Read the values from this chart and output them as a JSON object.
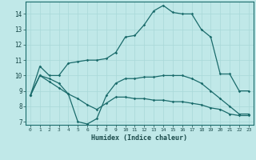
{
  "xlabel": "Humidex (Indice chaleur)",
  "bg_color": "#c0e8e8",
  "line_color": "#1a6b6b",
  "grid_color": "#a8d8d8",
  "xlim": [
    -0.5,
    23.5
  ],
  "ylim": [
    6.8,
    14.8
  ],
  "yticks": [
    7,
    8,
    9,
    10,
    11,
    12,
    13,
    14
  ],
  "xticks": [
    0,
    1,
    2,
    3,
    4,
    5,
    6,
    7,
    8,
    9,
    10,
    11,
    12,
    13,
    14,
    15,
    16,
    17,
    18,
    19,
    20,
    21,
    22,
    23
  ],
  "line1_x": [
    0,
    1,
    2,
    3,
    4,
    5,
    6,
    7,
    8,
    9,
    10,
    11,
    12,
    13,
    14,
    15,
    16,
    17,
    18,
    19,
    20,
    21,
    22,
    23
  ],
  "line1_y": [
    8.7,
    10.6,
    10.0,
    10.0,
    10.8,
    10.9,
    11.0,
    11.0,
    11.1,
    11.5,
    12.5,
    12.6,
    13.3,
    14.2,
    14.55,
    14.1,
    14.0,
    14.0,
    13.0,
    12.5,
    10.1,
    10.1,
    9.0,
    9.0
  ],
  "line2_x": [
    0,
    1,
    2,
    3,
    4,
    5,
    6,
    7,
    8,
    9,
    10,
    11,
    12,
    13,
    14,
    15,
    16,
    17,
    18,
    19,
    20,
    21,
    22,
    23
  ],
  "line2_y": [
    8.7,
    10.0,
    9.8,
    9.5,
    8.8,
    7.0,
    6.85,
    7.2,
    8.7,
    9.5,
    9.8,
    9.8,
    9.9,
    9.9,
    10.0,
    10.0,
    10.0,
    9.8,
    9.5,
    9.0,
    8.5,
    8.0,
    7.5,
    7.5
  ],
  "line3_x": [
    0,
    1,
    2,
    3,
    4,
    5,
    6,
    7,
    8,
    9,
    10,
    11,
    12,
    13,
    14,
    15,
    16,
    17,
    18,
    19,
    20,
    21,
    22,
    23
  ],
  "line3_y": [
    8.7,
    10.0,
    9.6,
    9.2,
    8.8,
    8.5,
    8.1,
    7.8,
    8.2,
    8.6,
    8.6,
    8.5,
    8.5,
    8.4,
    8.4,
    8.3,
    8.3,
    8.2,
    8.1,
    7.9,
    7.8,
    7.5,
    7.4,
    7.4
  ]
}
